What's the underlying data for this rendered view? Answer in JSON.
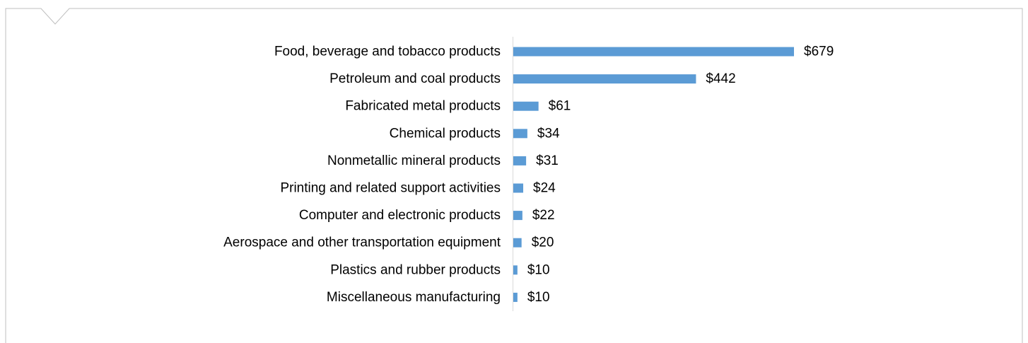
{
  "chart_data": {
    "type": "bar",
    "orientation": "horizontal",
    "categories": [
      "Food, beverage and tobacco products",
      "Petroleum and coal products",
      "Fabricated metal products",
      "Chemical products",
      "Nonmetallic mineral products",
      "Printing and related support activities",
      "Computer and electronic products",
      "Aerospace and other transportation equipment",
      "Plastics and rubber products",
      "Miscellaneous manufacturing"
    ],
    "values": [
      679,
      442,
      61,
      34,
      31,
      24,
      22,
      20,
      10,
      10
    ],
    "value_labels": [
      "$679",
      "$442",
      "$61",
      "$34",
      "$31",
      "$24",
      "$22",
      "$20",
      "$10",
      "$10"
    ],
    "title": "",
    "xlabel": "",
    "ylabel": "",
    "xlim": [
      0,
      679
    ],
    "grid": false,
    "legend": "none",
    "colors": {
      "bar": "#5b9bd5",
      "axis": "#d9d9d9",
      "frame": "#bfbfbf"
    }
  }
}
